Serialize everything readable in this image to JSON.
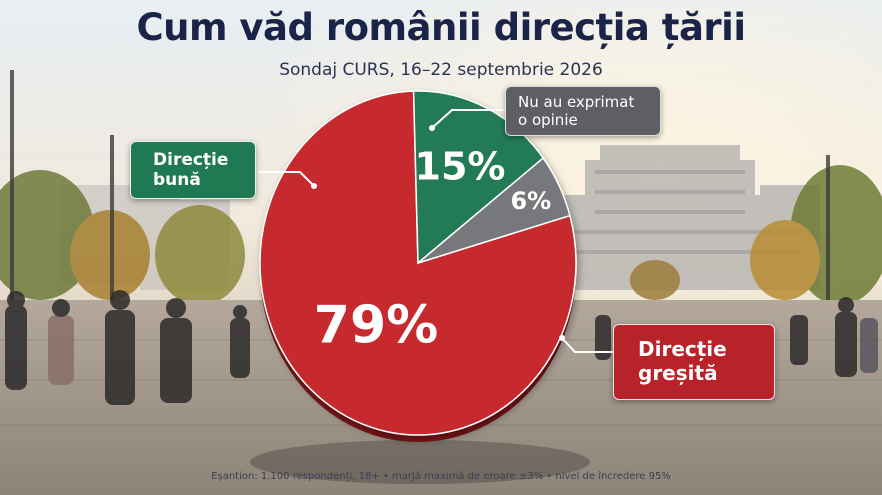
{
  "header": {
    "title": "Cum văd românii direcția țării",
    "subtitle": "Sondaj CURS, 16–22 septembrie 2026"
  },
  "chart_data": {
    "type": "pie",
    "slices": [
      {
        "label_lines": [
          "Direcție",
          "greșită"
        ],
        "value": 79,
        "display": "79%",
        "color": "#c62a2d"
      },
      {
        "label_lines": [
          "Direcție",
          "bună"
        ],
        "value": 15,
        "display": "15%",
        "color": "#217a56"
      },
      {
        "label_lines": [
          "Nu au exprimat",
          "o opinie"
        ],
        "value": 6,
        "display": "6%",
        "color": "#77787b"
      }
    ]
  },
  "footnote": "Eșantion: 1.100 respondenți, 18+ • marjă maximă de eroare ±3% • nivel de încredere 95%"
}
